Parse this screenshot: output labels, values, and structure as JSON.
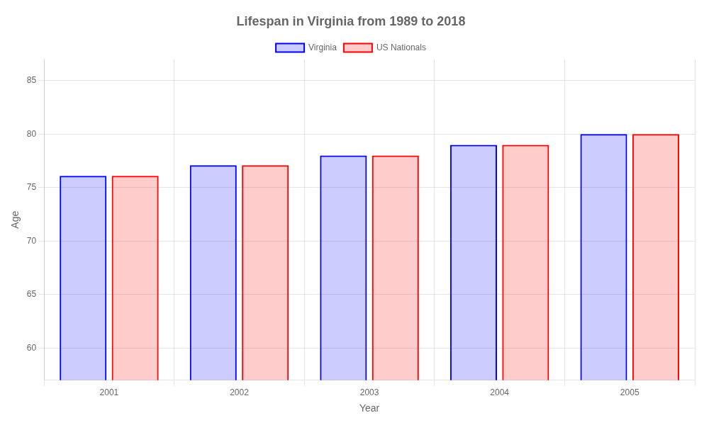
{
  "chart_data": {
    "type": "bar",
    "title": "Lifespan in Virginia from 1989 to 2018",
    "xlabel": "Year",
    "ylabel": "Age",
    "categories": [
      "2001",
      "2002",
      "2003",
      "2004",
      "2005"
    ],
    "series": [
      {
        "name": "Virginia",
        "color": "#0000ff",
        "values": [
          76.1,
          77.1,
          78.0,
          79.0,
          80.0
        ]
      },
      {
        "name": "US Nationals",
        "color": "#ff0000",
        "values": [
          76.1,
          77.1,
          78.0,
          79.0,
          80.0
        ]
      }
    ],
    "ylim": [
      57,
      87
    ],
    "yticks": [
      60,
      65,
      70,
      75,
      80,
      85
    ],
    "grid": true,
    "legend": "top"
  }
}
